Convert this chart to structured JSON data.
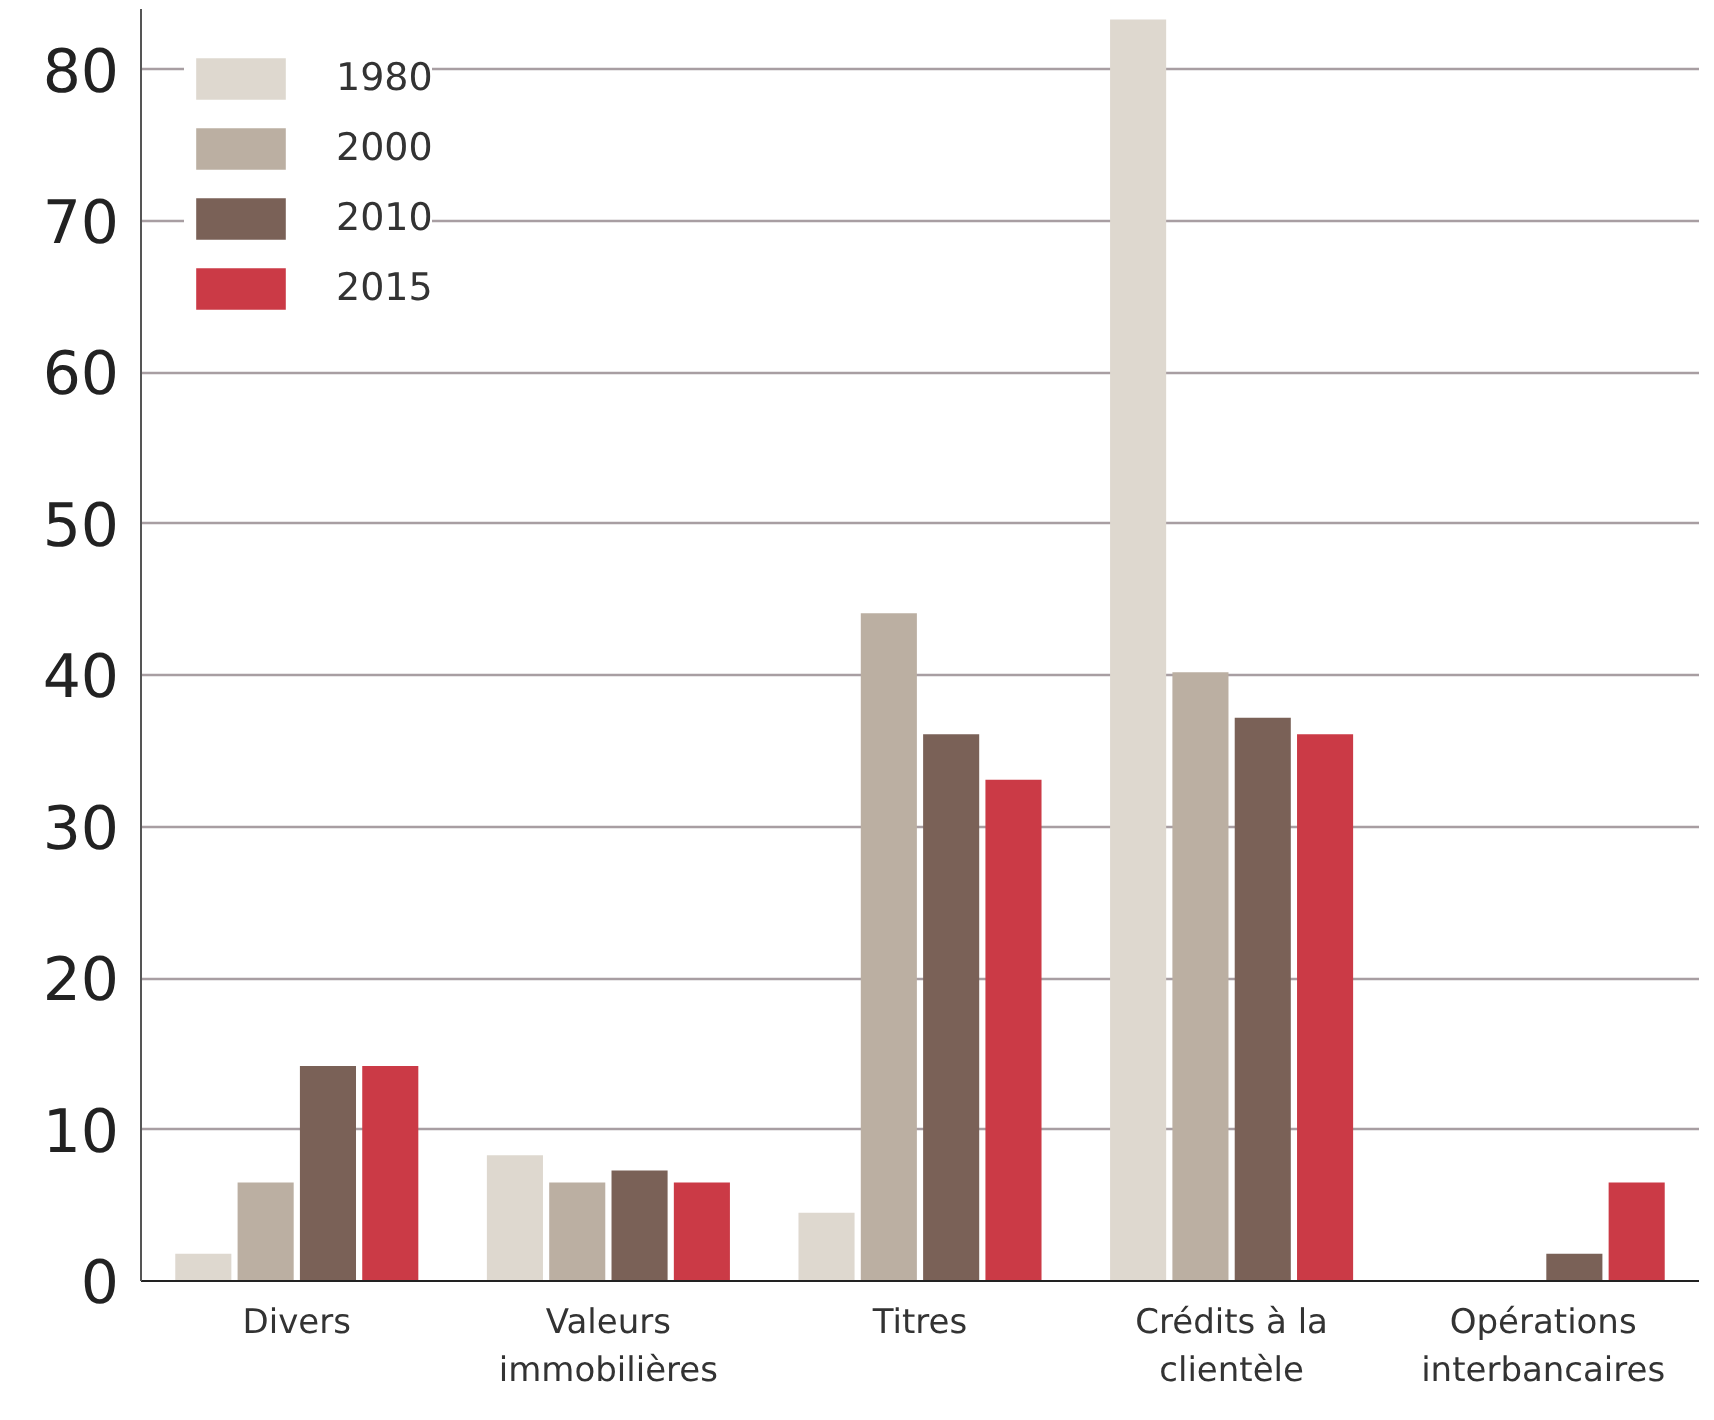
{
  "chart_data": {
    "type": "bar",
    "categories": [
      "Divers",
      "Valeurs immobilières",
      "Titres",
      "Crédits à la clientèle",
      "Opérations interbancaires"
    ],
    "series": [
      {
        "name": "1980",
        "color": "#ded8cf",
        "values": [
          1.8,
          8.3,
          4.5,
          83.3,
          0
        ]
      },
      {
        "name": "2000",
        "color": "#bbafa2",
        "values": [
          6.5,
          6.5,
          44.1,
          40.2,
          0
        ]
      },
      {
        "name": "2010",
        "color": "#7a6157",
        "values": [
          14.2,
          7.3,
          36.1,
          37.2,
          1.8
        ]
      },
      {
        "name": "2015",
        "color": "#cb3a46",
        "values": [
          14.2,
          6.5,
          33.1,
          36.1,
          6.5
        ]
      }
    ],
    "ylim": [
      0,
      84
    ],
    "yticks": [
      0,
      10,
      20,
      30,
      40,
      50,
      60,
      70,
      80
    ],
    "grid": "y",
    "legend": "top left"
  }
}
